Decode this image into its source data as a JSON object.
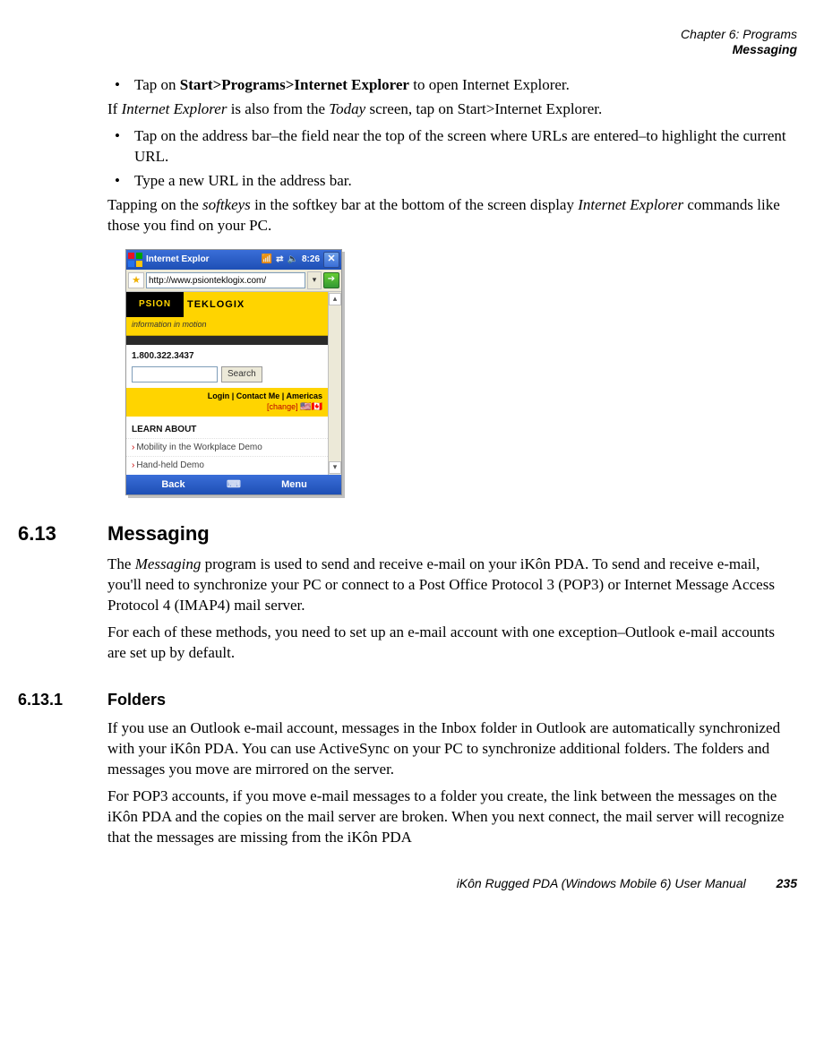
{
  "header": {
    "chapter": "Chapter 6: Programs",
    "section": "Messaging"
  },
  "intro": {
    "bullet1_pre": "Tap on ",
    "bullet1_bold": "Start>Programs>Internet Explorer",
    "bullet1_post": " to open Internet Explorer.",
    "para1_pre": "If ",
    "para1_i1": "Internet Explorer",
    "para1_mid": " is also from the ",
    "para1_i2": "Today",
    "para1_post": " screen, tap on Start>Internet Explorer.",
    "bullet2": "Tap on the address bar–the field near the top of the screen where URLs are entered–to highlight the current URL.",
    "bullet3": "Type a new URL in the address bar.",
    "para2_pre": "Tapping on the ",
    "para2_i1": "softkeys",
    "para2_mid": " in the softkey bar at the bottom of the screen display ",
    "para2_i2": "Internet Explorer",
    "para2_post": " commands like those you find on your PC."
  },
  "shot": {
    "title": "Internet Explor",
    "time": "8:26",
    "close": "✕",
    "url": "http://www.psionteklogix.com/",
    "go": "➔",
    "logo_psion": "PSION",
    "logo_tek": "TEKLOGIX",
    "tagline": "information in motion",
    "phone": "1.800.322.3437",
    "search_btn": "Search",
    "login_links": "Login | Contact Me | Americas",
    "login_change": "[change]",
    "flags": "🇺🇸🇨🇦",
    "learn": "LEARN ABOUT",
    "learn1": "Mobility in the Workplace Demo",
    "learn2": "Hand-held Demo",
    "sk_back": "Back",
    "sk_kbd": "⌨",
    "sk_menu": "Menu",
    "colors": {
      "titlebar_from": "#3a6ed8",
      "titlebar_to": "#1e4fb5",
      "yellow": "#ffd400",
      "black": "#000000",
      "scroll_bg": "#ece9d8"
    }
  },
  "sec613": {
    "num": "6.13",
    "title": "Messaging",
    "p1_pre": "The ",
    "p1_i": "Messaging",
    "p1_post": " program is used to send and receive e-mail on your iKôn PDA. To send and receive e-mail, you'll need to synchronize your PC or connect to a Post Office Protocol 3 (POP3) or Internet Message Access Protocol 4 (IMAP4) mail server.",
    "p2": "For each of these methods, you need to set up an e-mail account with one exception–Outlook e-mail accounts are set up by default."
  },
  "sec6131": {
    "num": "6.13.1",
    "title": "Folders",
    "p1": "If you use an Outlook e-mail account, messages in the Inbox folder in Outlook are automatically synchronized with your iKôn PDA. You can use ActiveSync on your PC to synchronize additional folders. The folders and messages you move are mirrored on the server.",
    "p2": "For POP3 accounts, if you move e-mail messages to a folder you create, the link between the messages on the iKôn PDA and the copies on the mail server are broken. When you next connect, the mail server will recognize that the messages are missing from the iKôn PDA"
  },
  "footer": {
    "manual": "iKôn Rugged PDA (Windows Mobile 6) User Manual",
    "page": "235"
  }
}
